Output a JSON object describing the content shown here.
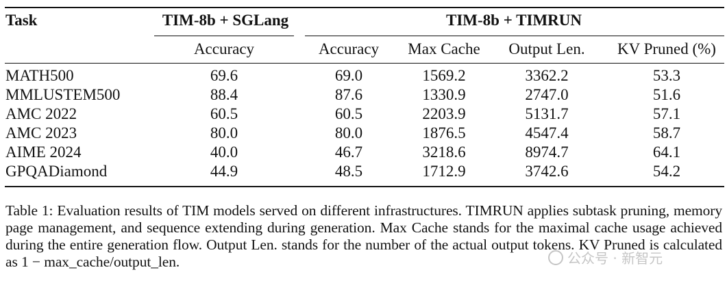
{
  "table": {
    "group_headers": {
      "task": "Task",
      "sglang": "TIM-8b + SGLang",
      "timrun": "TIM-8b + TIMRUN"
    },
    "sub_headers": [
      "Accuracy",
      "Accuracy",
      "Max Cache",
      "Output Len.",
      "KV Pruned (%)"
    ],
    "rows": [
      {
        "task": "MATH500",
        "cells": [
          "69.6",
          "69.0",
          "1569.2",
          "3362.2",
          "53.3"
        ]
      },
      {
        "task": "MMLUSTEM500",
        "cells": [
          "88.4",
          "87.6",
          "1330.9",
          "2747.0",
          "51.6"
        ]
      },
      {
        "task": "AMC 2022",
        "cells": [
          "60.5",
          "60.5",
          "2203.9",
          "5131.7",
          "57.1"
        ]
      },
      {
        "task": "AMC 2023",
        "cells": [
          "80.0",
          "80.0",
          "1876.5",
          "4547.4",
          "58.7"
        ]
      },
      {
        "task": "AIME 2024",
        "cells": [
          "40.0",
          "46.7",
          "3218.6",
          "8974.7",
          "64.1"
        ]
      },
      {
        "task": "GPQADiamond",
        "cells": [
          "44.9",
          "48.5",
          "1712.9",
          "3742.6",
          "54.2"
        ]
      }
    ]
  },
  "caption": {
    "text": "Table 1: Evaluation results of TIM models served on different infrastructures. TIMRUN applies subtask pruning, memory page management, and sequence extending during generation. Max Cache stands for the maximal cache usage achieved during the entire generation flow. Output Len. stands for the number of the actual output tokens. KV Pruned is calculated as ",
    "formula": "1 − max_cache/output_len."
  },
  "watermark": {
    "text": "公众号 · 新智元"
  }
}
